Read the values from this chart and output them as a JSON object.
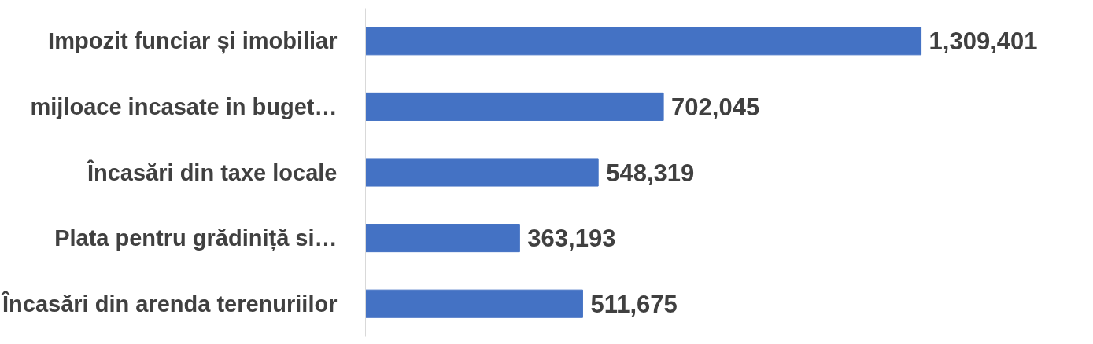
{
  "chart_data": {
    "type": "bar",
    "orientation": "horizontal",
    "categories": [
      "Impozit funciar și imobiliar",
      "mijloace incasate in buget…",
      "Încasări din taxe locale",
      "Plata pentru grădiniță si…",
      "Încasări din arenda terenuriilor"
    ],
    "values": [
      1309401,
      702045,
      548319,
      363193,
      511675
    ],
    "value_labels": [
      "1,309,401",
      "702,045",
      "548,319",
      "363,193",
      "511,675"
    ],
    "color": "#4472c4",
    "grid": false
  }
}
